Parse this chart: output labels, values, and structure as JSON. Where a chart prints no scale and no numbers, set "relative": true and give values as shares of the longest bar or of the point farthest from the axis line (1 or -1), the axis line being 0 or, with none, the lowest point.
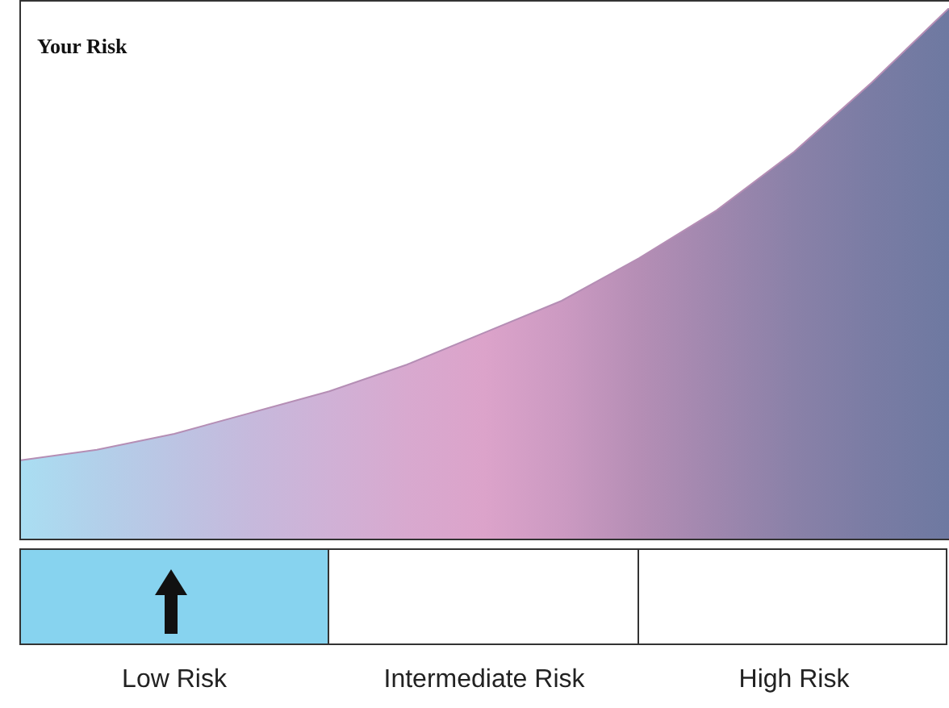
{
  "chart_data": [
    {
      "type": "area",
      "relative": true,
      "categories": [
        null,
        null,
        null,
        null,
        null,
        null,
        null,
        null,
        null,
        null,
        null,
        null,
        null
      ],
      "values": [
        0.15,
        0.17,
        0.2,
        0.24,
        0.28,
        0.33,
        0.39,
        0.45,
        0.53,
        0.62,
        0.73,
        0.86,
        1.0
      ],
      "colors": [
        "#a9def2",
        "#b2d0ea",
        "#bcc4e3",
        "#c6b9dc",
        "#d0b1d6",
        "#d8a9cf",
        "#dca3ca",
        "#cc9ac2",
        "#b58eb5",
        "#9f87ae",
        "#8a81a8",
        "#7a7ca4",
        "#6e79a1"
      ],
      "color": "#b58eb5",
      "annotations": [
        "Your Risk"
      ],
      "legend": false
    },
    {
      "type": "other",
      "annotations": [
        "Low Risk",
        "Intermediate Risk",
        "High Risk"
      ]
    }
  ]
}
